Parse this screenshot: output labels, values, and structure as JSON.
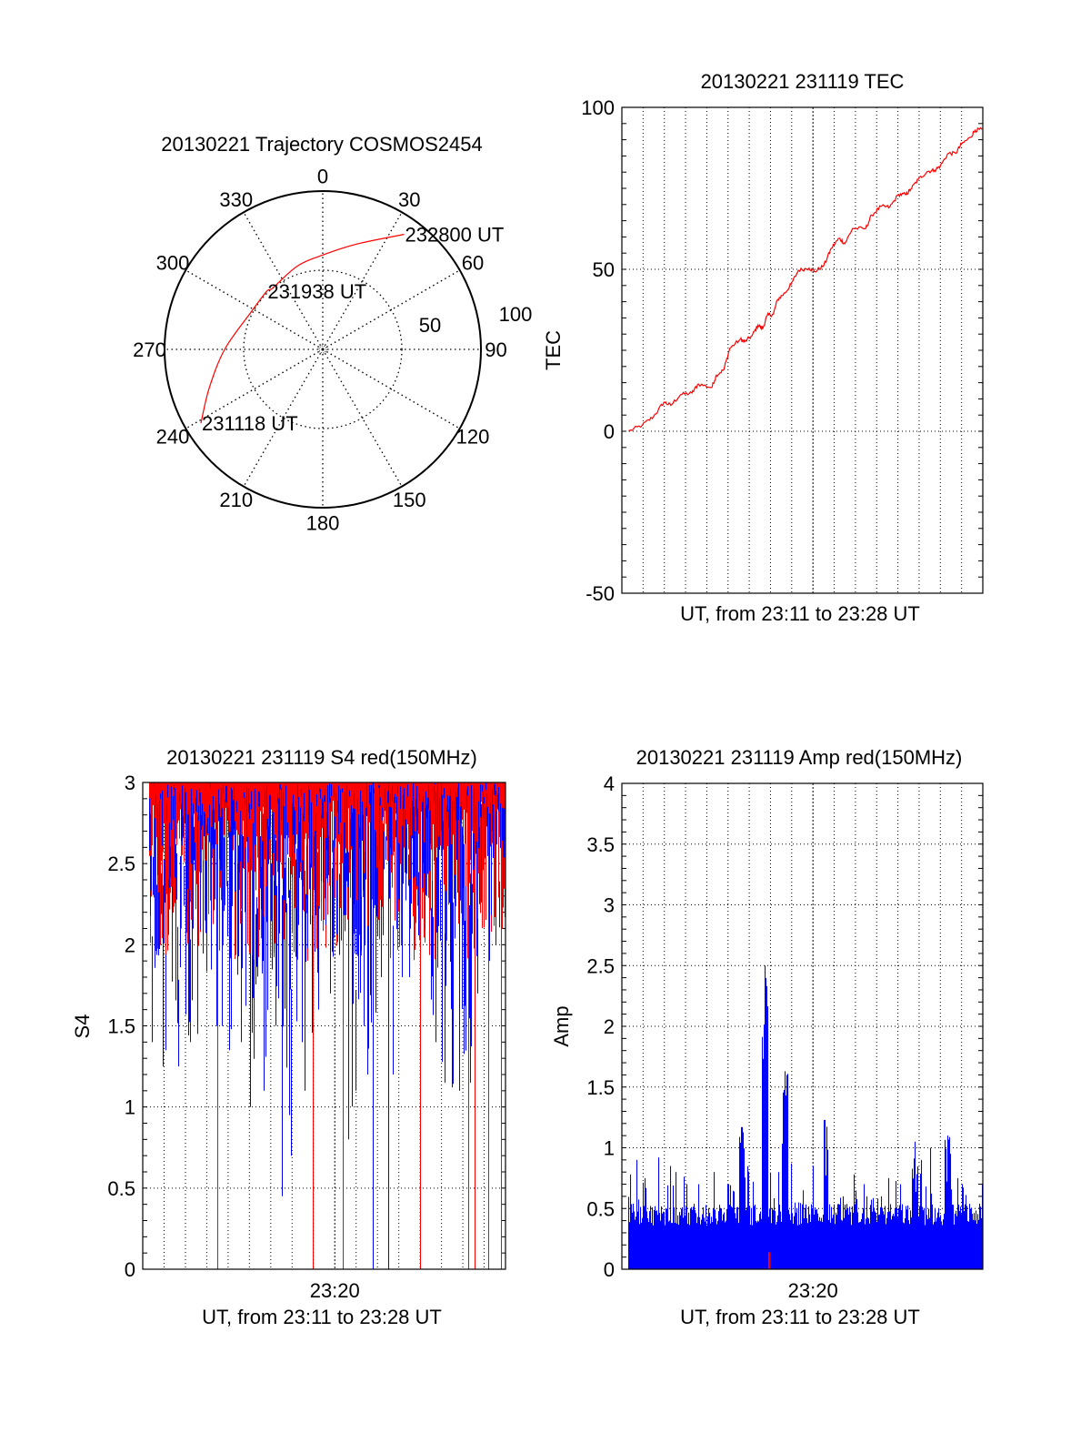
{
  "chart_data": [
    {
      "type": "polar",
      "title": "20130221 Trajectory COSMOS2454",
      "angle_labels": [
        "0",
        "30",
        "60",
        "90",
        "120",
        "150",
        "180",
        "210",
        "240",
        "270",
        "300",
        "330"
      ],
      "radial_labels": [
        "50",
        "100"
      ],
      "rlim": [
        0,
        100
      ],
      "grid": true,
      "series": [
        {
          "color": "#ff0000",
          "points": [
            [
              238.8,
              90
            ],
            [
              251,
              76
            ],
            [
              270,
              62
            ],
            [
              298,
              51
            ],
            [
              316,
              51
            ],
            [
              320.6,
              50
            ],
            [
              343,
              55
            ],
            [
              1,
              60
            ],
            [
              18,
              70
            ],
            [
              35.3,
              89
            ]
          ]
        }
      ],
      "annotations": [
        {
          "text": "231118 UT",
          "at": [
            238.8,
            90
          ]
        },
        {
          "text": "231938 UT",
          "at": [
            316,
            51
          ]
        },
        {
          "text": "232800 UT",
          "at": [
            35.3,
            89
          ]
        }
      ]
    },
    {
      "type": "line",
      "title": "20130221 231119 TEC",
      "xlabel": "UT, from 23:11 to 23:28 UT",
      "ylabel": "TEC",
      "xlim": [
        "23:11:00",
        "23:28:00"
      ],
      "ylim": [
        -50,
        100
      ],
      "yticks": [
        "-50",
        "0",
        "50",
        "100"
      ],
      "grid": true,
      "series": [
        {
          "color": "#ff0000",
          "points": [
            [
              "23:11:19",
              0
            ],
            [
              "23:11:58",
              1.9
            ],
            [
              "23:12:30",
              4.6
            ],
            [
              "23:12:59",
              9
            ],
            [
              "23:13:18",
              8
            ],
            [
              "23:13:46",
              11.3
            ],
            [
              "23:14:18",
              11.8
            ],
            [
              "23:14:36",
              14.6
            ],
            [
              "23:15:14",
              13.5
            ],
            [
              "23:15:27",
              17.3
            ],
            [
              "23:15:48",
              19
            ],
            [
              "23:16:05",
              25.6
            ],
            [
              "23:16:35",
              28.4
            ],
            [
              "23:16:47",
              27.6
            ],
            [
              "23:17:08",
              29.5
            ],
            [
              "23:17:25",
              32.8
            ],
            [
              "23:17:38",
              31.7
            ],
            [
              "23:17:51",
              35.8
            ],
            [
              "23:18:08",
              36.1
            ],
            [
              "23:18:20",
              40.7
            ],
            [
              "23:18:41",
              42.7
            ],
            [
              "23:18:58",
              45.3
            ],
            [
              "23:19:19",
              49.7
            ],
            [
              "23:19:49",
              50.4
            ],
            [
              "23:20:06",
              49.3
            ],
            [
              "23:20:31",
              51.2
            ],
            [
              "23:20:52",
              56.5
            ],
            [
              "23:21:14",
              59.6
            ],
            [
              "23:21:30",
              57.9
            ],
            [
              "23:21:52",
              62.6
            ],
            [
              "23:22:29",
              62.6
            ],
            [
              "23:22:46",
              66.7
            ],
            [
              "23:23:12",
              69.4
            ],
            [
              "23:23:37",
              69.2
            ],
            [
              "23:24:02",
              73.1
            ],
            [
              "23:24:23",
              73.1
            ],
            [
              "23:24:36",
              74.7
            ],
            [
              "23:24:58",
              77.8
            ],
            [
              "23:25:23",
              80.2
            ],
            [
              "23:25:44",
              80.6
            ],
            [
              "23:26:00",
              81.9
            ],
            [
              "23:26:22",
              85.8
            ],
            [
              "23:26:43",
              85.8
            ],
            [
              "23:27:00",
              88.7
            ],
            [
              "23:27:25",
              90.7
            ],
            [
              "23:27:38",
              92.9
            ],
            [
              "23:27:58",
              93.2
            ]
          ]
        }
      ]
    },
    {
      "type": "line",
      "title": "20130221 231119 S4 red(150MHz)",
      "xlabel": "UT, from 23:11 to 23:28 UT",
      "ylabel": "S4",
      "xlim": [
        "23:11:00",
        "23:28:00"
      ],
      "xticks": [
        "23:20"
      ],
      "ylim": [
        0,
        3
      ],
      "yticks": [
        "0",
        "0.5",
        "1",
        "1.5",
        "2",
        "2.5",
        "3"
      ],
      "grid": true,
      "bins": [
        "23:11:18",
        "23:11:30",
        "23:12:00",
        "23:12:30",
        "23:13:00",
        "23:13:30",
        "23:14:00",
        "23:14:30",
        "23:15:00",
        "23:15:30",
        "23:16:00",
        "23:16:30",
        "23:17:00",
        "23:17:30",
        "23:18:00",
        "23:18:30",
        "23:19:00",
        "23:19:30",
        "23:20:00",
        "23:20:30",
        "23:21:00",
        "23:21:30",
        "23:22:00",
        "23:22:30",
        "23:23:00",
        "23:23:30",
        "23:24:00",
        "23:24:30",
        "23:25:00",
        "23:25:30",
        "23:26:00",
        "23:26:30",
        "23:27:00",
        "23:27:30"
      ],
      "series": [
        {
          "color": "#ff0000",
          "min": [
            1.9,
            1.9,
            1.9,
            1.9,
            1.9,
            1.9,
            1.9,
            0,
            1.9,
            1.9,
            1.9,
            1.9,
            1.9,
            1.9,
            1.9,
            0,
            1.9,
            1.9,
            0,
            1.9,
            1.9,
            1.9,
            1.9,
            1.9,
            1.9,
            1.9,
            0,
            1.9,
            1.9,
            1.9,
            0,
            0,
            0,
            0
          ]
        },
        {
          "color": "#0000ff",
          "min": [
            1.4,
            1.25,
            1.35,
            1.25,
            1.4,
            1.45,
            1.5,
            1.5,
            1.35,
            1.4,
            1.0,
            1.1,
            1.5,
            0.45,
            1.4,
            1.1,
            1.6,
            1.7,
            1.9,
            0.8,
            1.5,
            0,
            1.8,
            0,
            1.8,
            1.8,
            2.1,
            1.4,
            1.15,
            1.1,
            1.15,
            1.7,
            1.9,
            2.0
          ]
        }
      ]
    },
    {
      "type": "bar",
      "title": "20130221 231119 Amp red(150MHz)",
      "xlabel": "UT, from 23:11 to 23:28 UT",
      "ylabel": "Amp",
      "xlim": [
        "23:11:00",
        "23:28:00"
      ],
      "xticks": [
        "23:20"
      ],
      "ylim": [
        0,
        4
      ],
      "yticks": [
        "0",
        "0.5",
        "1",
        "1.5",
        "2",
        "2.5",
        "3",
        "3.5",
        "4"
      ],
      "grid": true,
      "bins": [
        "23:11:18",
        "23:11:30",
        "23:12:00",
        "23:12:30",
        "23:13:00",
        "23:13:30",
        "23:14:00",
        "23:14:30",
        "23:15:00",
        "23:15:30",
        "23:16:00",
        "23:16:30",
        "23:17:00",
        "23:17:30",
        "23:18:00",
        "23:18:30",
        "23:19:00",
        "23:19:30",
        "23:20:00",
        "23:20:30",
        "23:21:00",
        "23:21:30",
        "23:22:00",
        "23:22:30",
        "23:23:00",
        "23:23:30",
        "23:24:00",
        "23:24:30",
        "23:25:00",
        "23:25:30",
        "23:26:00",
        "23:26:30",
        "23:27:00",
        "23:27:30"
      ],
      "series": [
        {
          "color": "#0000ff",
          "max": [
            0.78,
            0.9,
            0.75,
            0.92,
            0.85,
            0.8,
            0.7,
            0.7,
            0.8,
            0.7,
            0.7,
            1.17,
            0.72,
            2.5,
            0.8,
            1.63,
            0.55,
            0.65,
            0.85,
            1.23,
            0.6,
            0.78,
            0.7,
            0.6,
            0.6,
            0.75,
            0.7,
            1.05,
            0.9,
            1.0,
            1.1,
            0.75,
            0.7,
            0.7
          ]
        },
        {
          "color": "#ff0000",
          "points": [
            [
              "23:17:55",
              0.08
            ],
            [
              "23:17:58",
              0.08
            ]
          ]
        }
      ]
    }
  ]
}
